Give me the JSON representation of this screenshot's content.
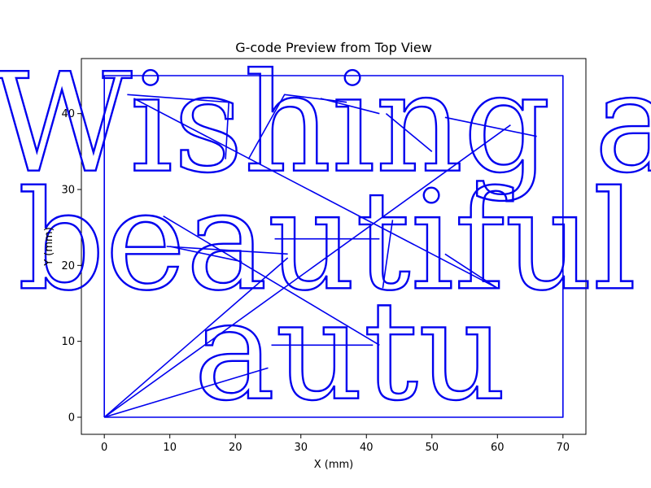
{
  "chart_data": {
    "type": "line",
    "title": "G-code Preview from Top View",
    "xlabel": "X (mm)",
    "ylabel": "Y (mm)",
    "xlim": [
      -3.5,
      73.5
    ],
    "ylim": [
      -2.25,
      47.25
    ],
    "xticks": [
      0,
      10,
      20,
      30,
      40,
      50,
      60,
      70
    ],
    "yticks": [
      0,
      10,
      20,
      30,
      40
    ],
    "grid": false,
    "line_color": "#0000ee",
    "text_lines": [
      {
        "text": "Wishing a",
        "x": 35,
        "y": 32.5
      },
      {
        "text": "beautiful",
        "x": 34,
        "y": 17
      },
      {
        "text": "autu",
        "x": 37.5,
        "y": 2.5
      }
    ],
    "series": [
      {
        "points": [
          [
            0,
            0
          ],
          [
            70,
            0
          ],
          [
            70,
            45
          ],
          [
            0,
            45
          ],
          [
            0,
            0
          ]
        ]
      },
      {
        "points": [
          [
            0,
            0
          ],
          [
            28,
            21
          ]
        ]
      },
      {
        "points": [
          [
            0,
            0
          ],
          [
            25,
            6.5
          ]
        ]
      },
      {
        "points": [
          [
            0,
            0
          ],
          [
            62,
            38.5
          ]
        ]
      },
      {
        "points": [
          [
            3.5,
            42.5
          ],
          [
            19,
            41.5
          ]
        ]
      },
      {
        "points": [
          [
            4.5,
            42
          ],
          [
            60,
            17
          ]
        ]
      },
      {
        "points": [
          [
            19,
            41.5
          ],
          [
            18.5,
            34
          ]
        ]
      },
      {
        "points": [
          [
            22,
            34
          ],
          [
            27.5,
            42.5
          ],
          [
            37,
            41.5
          ]
        ]
      },
      {
        "points": [
          [
            33,
            42
          ],
          [
            42,
            40
          ]
        ]
      },
      {
        "points": [
          [
            43,
            40
          ],
          [
            50,
            35
          ]
        ]
      },
      {
        "points": [
          [
            52,
            39.5
          ],
          [
            66,
            37
          ]
        ]
      },
      {
        "points": [
          [
            9,
            26.5
          ],
          [
            42,
            9.5
          ]
        ]
      },
      {
        "points": [
          [
            9.5,
            22.5
          ],
          [
            28,
            21.5
          ]
        ]
      },
      {
        "points": [
          [
            10,
            22.5
          ],
          [
            21,
            20.5
          ]
        ]
      },
      {
        "points": [
          [
            26,
            23.5
          ],
          [
            42,
            23.5
          ]
        ]
      },
      {
        "points": [
          [
            44,
            26
          ],
          [
            42.5,
            17
          ]
        ]
      },
      {
        "points": [
          [
            52,
            21.5
          ],
          [
            60,
            17
          ]
        ]
      },
      {
        "points": [
          [
            25.5,
            9.5
          ],
          [
            41,
            9.5
          ]
        ]
      }
    ]
  }
}
